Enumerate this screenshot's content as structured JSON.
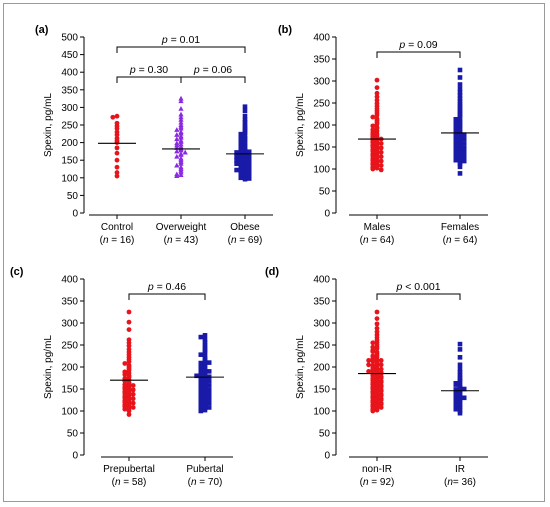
{
  "chart_data": [
    {
      "type": "scatter",
      "panel_label": "(a)",
      "ylabel": "Spexin, pg/mL",
      "ylim": [
        0,
        500
      ],
      "yticks": [
        0,
        50,
        100,
        150,
        200,
        250,
        300,
        350,
        400,
        450,
        500
      ],
      "groups": [
        {
          "label": "Control",
          "n_label": "(n = 16)",
          "color": "#e8141b",
          "marker": "circle",
          "mean": 198,
          "values": [
            275,
            272,
            255,
            247,
            240,
            230,
            222,
            212,
            205,
            200,
            185,
            170,
            150,
            130,
            115,
            105
          ]
        },
        {
          "label": "Overweight",
          "n_label": "(n = 43)",
          "color": "#8a2be2",
          "marker": "triangle",
          "mean": 182,
          "values": [
            325,
            318,
            296,
            280,
            272,
            265,
            257,
            250,
            245,
            240,
            236,
            230,
            226,
            222,
            218,
            214,
            210,
            206,
            202,
            198,
            195,
            192,
            188,
            185,
            182,
            178,
            175,
            172,
            168,
            165,
            160,
            155,
            150,
            145,
            140,
            135,
            130,
            125,
            120,
            115,
            110,
            108,
            105
          ]
        },
        {
          "label": "Obese",
          "n_label": "(n = 69)",
          "color": "#1a1aa8",
          "marker": "square",
          "mean": 168,
          "values": [
            302,
            290,
            275,
            265,
            258,
            250,
            244,
            238,
            233,
            228,
            224,
            220,
            216,
            212,
            208,
            204,
            200,
            197,
            194,
            191,
            188,
            185,
            182,
            180,
            178,
            176,
            174,
            172,
            170,
            168,
            166,
            164,
            162,
            160,
            158,
            156,
            154,
            152,
            150,
            148,
            146,
            144,
            142,
            140,
            138,
            136,
            134,
            132,
            130,
            128,
            126,
            124,
            122,
            120,
            118,
            116,
            114,
            112,
            110,
            108,
            106,
            104,
            102,
            100,
            98,
            96,
            140,
            150,
            160
          ]
        }
      ],
      "comparisons": [
        {
          "from": 0,
          "to": 2,
          "text": "p = 0.01",
          "level": 1
        },
        {
          "from": 0,
          "to": 1,
          "text": "p = 0.30",
          "level": 0
        },
        {
          "from": 1,
          "to": 2,
          "text": "p = 0.06",
          "level": 0
        }
      ]
    },
    {
      "type": "scatter",
      "panel_label": "(b)",
      "ylabel": "Spexin, pg/mL",
      "ylim": [
        0,
        400
      ],
      "yticks": [
        0,
        50,
        100,
        150,
        200,
        250,
        300,
        350,
        400
      ],
      "groups": [
        {
          "label": "Males",
          "n_label": "(n = 64)",
          "color": "#e8141b",
          "marker": "circle",
          "mean": 168,
          "values": [
            302,
            285,
            272,
            264,
            256,
            249,
            243,
            237,
            232,
            227,
            222,
            218,
            214,
            210,
            206,
            202,
            198,
            195,
            192,
            189,
            186,
            183,
            180,
            178,
            176,
            174,
            172,
            170,
            168,
            166,
            164,
            162,
            160,
            158,
            156,
            154,
            152,
            150,
            148,
            146,
            144,
            142,
            140,
            138,
            136,
            134,
            132,
            130,
            128,
            126,
            124,
            122,
            120,
            118,
            116,
            114,
            112,
            110,
            108,
            106,
            104,
            102,
            100,
            98
          ]
        },
        {
          "label": "Females",
          "n_label": "(n = 64)",
          "color": "#1a1aa8",
          "marker": "square",
          "mean": 182,
          "values": [
            325,
            308,
            292,
            282,
            274,
            267,
            260,
            254,
            248,
            243,
            238,
            233,
            229,
            225,
            221,
            217,
            213,
            209,
            206,
            203,
            200,
            197,
            194,
            191,
            188,
            186,
            184,
            182,
            180,
            178,
            176,
            174,
            172,
            170,
            168,
            166,
            164,
            162,
            160,
            158,
            156,
            154,
            152,
            150,
            148,
            146,
            144,
            142,
            140,
            138,
            136,
            134,
            132,
            130,
            128,
            126,
            124,
            122,
            120,
            118,
            115,
            112,
            105,
            90
          ]
        }
      ],
      "comparisons": [
        {
          "from": 0,
          "to": 1,
          "text": "p = 0.09",
          "level": 0
        }
      ]
    },
    {
      "type": "scatter",
      "panel_label": "(c)",
      "ylabel": "Spexin, pg/mL",
      "ylim": [
        0,
        400
      ],
      "yticks": [
        0,
        50,
        100,
        150,
        200,
        250,
        300,
        350,
        400
      ],
      "groups": [
        {
          "label": "Prepubertal",
          "n_label": "(n = 58)",
          "color": "#e8141b",
          "marker": "circle",
          "mean": 170,
          "values": [
            325,
            302,
            285,
            262,
            255,
            248,
            240,
            234,
            228,
            222,
            217,
            212,
            208,
            204,
            200,
            196,
            192,
            189,
            186,
            183,
            180,
            177,
            174,
            171,
            168,
            165,
            162,
            160,
            158,
            156,
            154,
            152,
            150,
            148,
            146,
            144,
            142,
            140,
            138,
            136,
            134,
            132,
            130,
            128,
            126,
            124,
            122,
            120,
            118,
            116,
            114,
            112,
            110,
            108,
            106,
            104,
            100,
            92
          ]
        },
        {
          "label": "Pubertal",
          "n_label": "(n = 70)",
          "color": "#1a1aa8",
          "marker": "square",
          "mean": 177,
          "values": [
            272,
            268,
            262,
            256,
            250,
            245,
            240,
            236,
            232,
            228,
            224,
            220,
            216,
            212,
            209,
            206,
            203,
            200,
            197,
            194,
            191,
            188,
            186,
            184,
            182,
            180,
            178,
            176,
            174,
            172,
            170,
            168,
            166,
            164,
            162,
            160,
            158,
            156,
            154,
            152,
            150,
            148,
            146,
            144,
            142,
            140,
            138,
            136,
            134,
            132,
            130,
            128,
            126,
            124,
            122,
            120,
            118,
            116,
            114,
            112,
            110,
            108,
            106,
            104,
            102,
            100,
            180,
            190,
            200,
            210
          ]
        }
      ],
      "comparisons": [
        {
          "from": 0,
          "to": 1,
          "text": "p = 0.46",
          "level": 0
        }
      ]
    },
    {
      "type": "scatter",
      "panel_label": "(d)",
      "ylabel": "Spexin, pg/mL",
      "ylim": [
        0,
        400
      ],
      "yticks": [
        0,
        50,
        100,
        150,
        200,
        250,
        300,
        350,
        400
      ],
      "groups": [
        {
          "label": "non-IR",
          "n_label": "(n = 92)",
          "color": "#e8141b",
          "marker": "circle",
          "mean": 185,
          "values": [
            325,
            310,
            298,
            288,
            280,
            273,
            267,
            261,
            256,
            251,
            246,
            242,
            238,
            234,
            230,
            226,
            222,
            219,
            216,
            213,
            210,
            207,
            204,
            201,
            198,
            196,
            194,
            192,
            190,
            188,
            186,
            184,
            182,
            180,
            178,
            176,
            174,
            172,
            170,
            168,
            166,
            164,
            162,
            160,
            158,
            156,
            154,
            152,
            150,
            148,
            146,
            144,
            142,
            140,
            138,
            136,
            134,
            132,
            130,
            128,
            126,
            124,
            122,
            120,
            118,
            116,
            114,
            112,
            110,
            108,
            106,
            104,
            102,
            100,
            185,
            195,
            205,
            215,
            225,
            235,
            245,
            255,
            175,
            165,
            155,
            145,
            135,
            125,
            115,
            205,
            215,
            190
          ]
        },
        {
          "label": "IR",
          "n_label": "(n= 36)",
          "color": "#1a1aa8",
          "marker": "square",
          "mean": 146,
          "values": [
            252,
            240,
            222,
            205,
            195,
            188,
            182,
            176,
            171,
            167,
            163,
            159,
            155,
            152,
            149,
            146,
            143,
            140,
            137,
            134,
            131,
            128,
            125,
            122,
            119,
            116,
            113,
            110,
            107,
            104,
            100,
            95,
            150,
            160,
            140,
            130
          ]
        }
      ],
      "comparisons": [
        {
          "from": 0,
          "to": 1,
          "text": "p < 0.001",
          "level": 0
        }
      ]
    }
  ]
}
